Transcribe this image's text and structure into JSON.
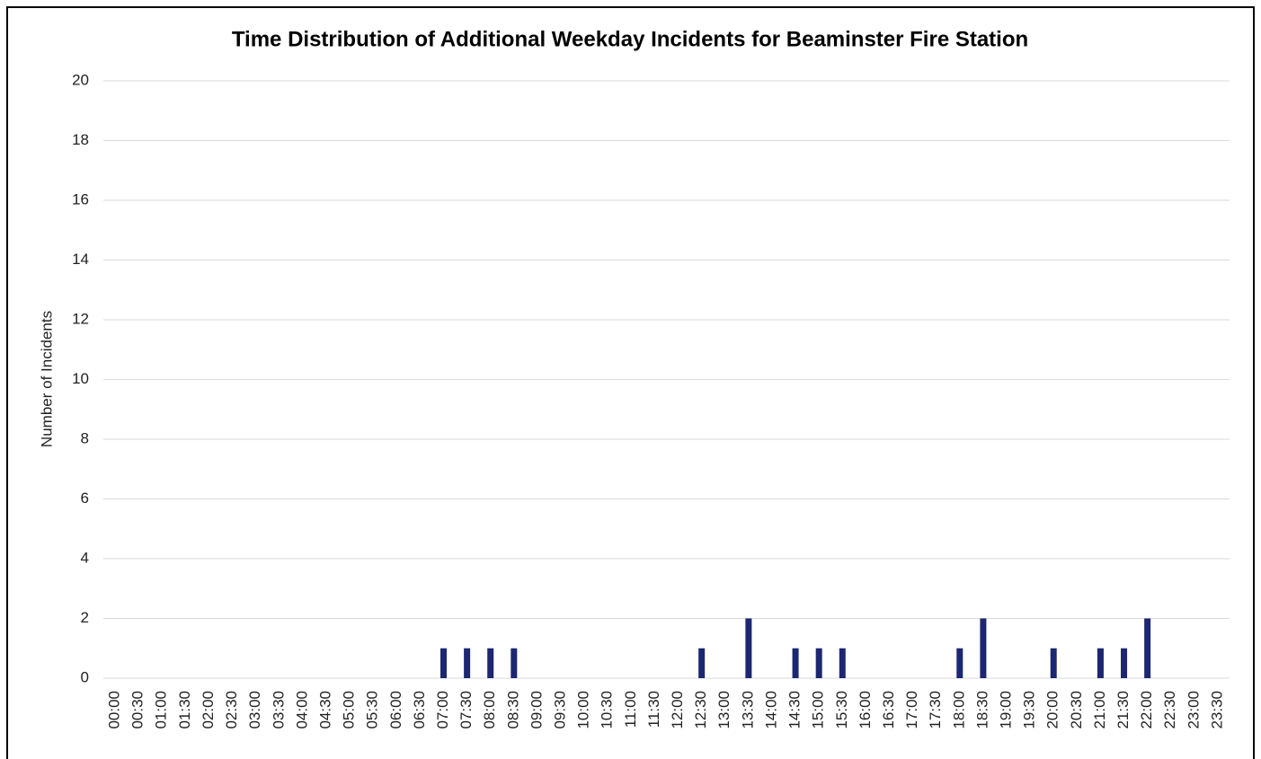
{
  "chart_data": {
    "type": "bar",
    "title": "Time Distribution of Additional Weekday Incidents for Beaminster Fire Station",
    "y_label": "Number of Incidents",
    "categories": [
      "00:00",
      "00:30",
      "01:00",
      "01:30",
      "02:00",
      "02:30",
      "03:00",
      "03:30",
      "04:00",
      "04:30",
      "05:00",
      "05:30",
      "06:00",
      "06:30",
      "07:00",
      "07:30",
      "08:00",
      "08:30",
      "09:00",
      "09:30",
      "10:00",
      "10:30",
      "11:00",
      "11:30",
      "12:00",
      "12:30",
      "13:00",
      "13:30",
      "14:00",
      "14:30",
      "15:00",
      "15:30",
      "16:00",
      "16:30",
      "17:00",
      "17:30",
      "18:00",
      "18:30",
      "19:00",
      "19:30",
      "20:00",
      "20:30",
      "21:00",
      "21:30",
      "22:00",
      "22:30",
      "23:00",
      "23:30"
    ],
    "values": [
      0,
      0,
      0,
      0,
      0,
      0,
      0,
      0,
      0,
      0,
      0,
      0,
      0,
      0,
      1,
      1,
      1,
      1,
      0,
      0,
      0,
      0,
      0,
      0,
      0,
      1,
      0,
      2,
      0,
      1,
      1,
      1,
      0,
      0,
      0,
      0,
      1,
      2,
      0,
      0,
      1,
      0,
      1,
      1,
      2,
      0,
      0,
      0
    ],
    "color": "#1c2770",
    "ylim": [
      0,
      20
    ],
    "yticks": [
      0,
      2,
      4,
      6,
      8,
      10,
      12,
      14,
      16,
      18,
      20
    ],
    "grid": true
  }
}
